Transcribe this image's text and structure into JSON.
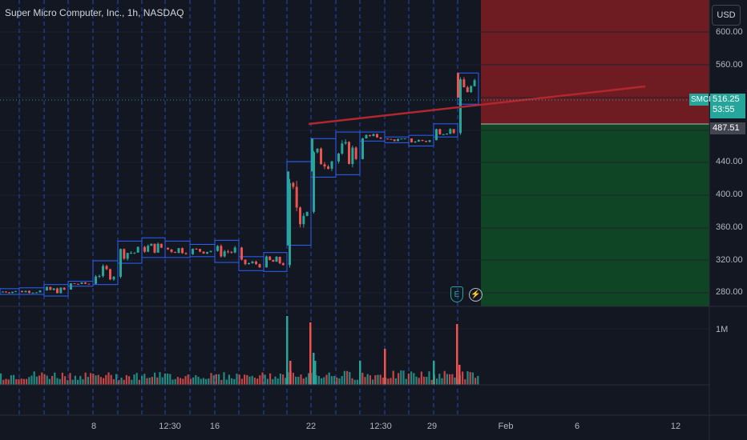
{
  "header": {
    "title": "Super Micro Computer, Inc., 1h, NASDAQ",
    "currency_button": "USD"
  },
  "price_axis": {
    "labels": [
      "600.00",
      "560.00",
      "440.00",
      "400.00",
      "360.00",
      "320.00",
      "280.00"
    ]
  },
  "volume_axis": {
    "label": "1M"
  },
  "time_axis": {
    "labels": [
      "8",
      "12:30",
      "16",
      "22",
      "12:30",
      "29",
      "Feb",
      "6",
      "12"
    ]
  },
  "tags": {
    "symbol": "SMCI",
    "last_price": "516.25",
    "countdown": "53:55",
    "target_price": "487.51"
  },
  "events": {
    "earnings_icon": "E",
    "split_icon": "⚡"
  },
  "colors": {
    "background": "#131722",
    "up": "#26a69a",
    "down": "#ef5350",
    "box_outline": "#2962ff",
    "stop_zone": "#7f1d22",
    "target_zone": "#0f4a26",
    "trendline": "#b2262e"
  }
}
